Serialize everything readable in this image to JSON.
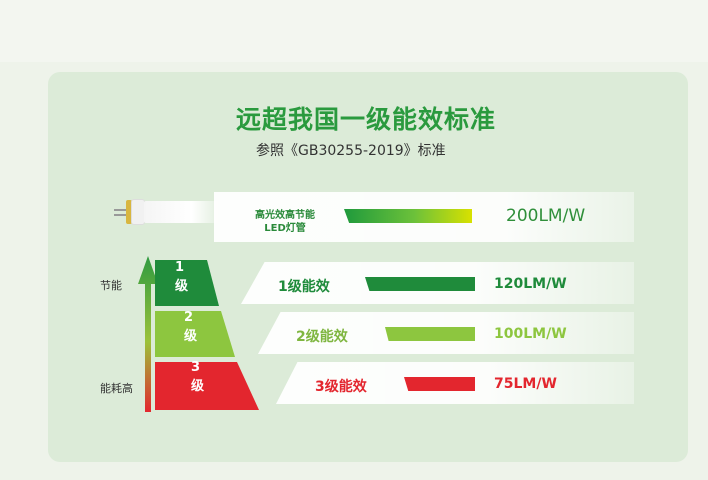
{
  "header": {
    "title": "远超我国一级能效标准",
    "subtitle": "参照《GB30255-2019》标准"
  },
  "led": {
    "label": "高光效高节能 LED灯管",
    "value": "200LM/W"
  },
  "scale": {
    "top_label": "节能",
    "bottom_label": "能耗高"
  },
  "levels": [
    {
      "tier": "1级",
      "name": "1级能效",
      "value": "120LM/W",
      "color": "#1f8b3b"
    },
    {
      "tier": "2级",
      "name": "2级能效",
      "value": "100LM/W",
      "color": "#8dc63f"
    },
    {
      "tier": "3级",
      "name": "3级能效",
      "value": "75LM/W",
      "color": "#e3262e"
    }
  ]
}
